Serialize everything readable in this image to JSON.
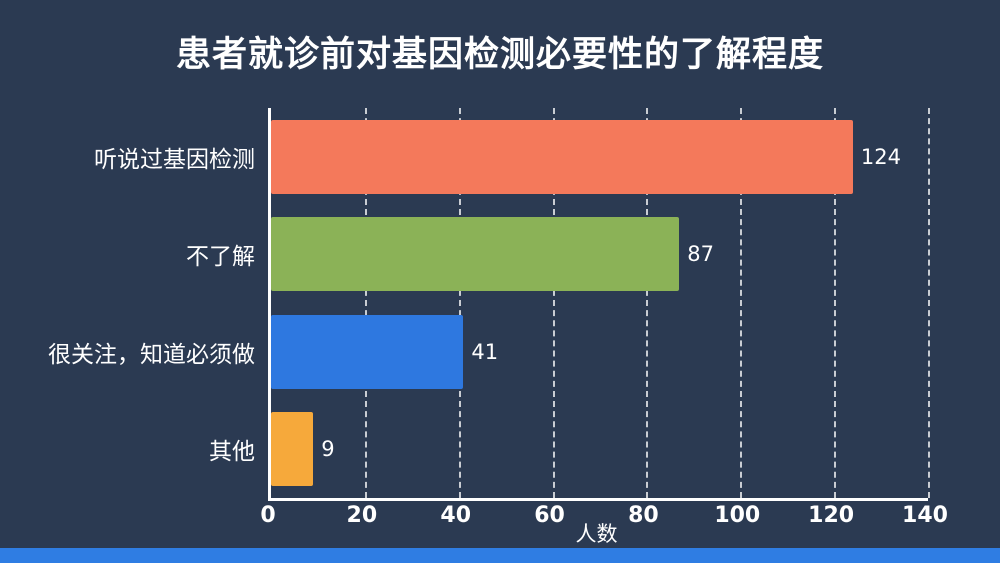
{
  "slide": {
    "background": "#2b3a52",
    "accent_bar_color": "#2f7de3",
    "axis_color": "#ffffff"
  },
  "chart_data": {
    "type": "bar",
    "orientation": "horizontal",
    "title": "患者就诊前对基因检测必要性的了解程度",
    "categories": [
      "听说过基因检测",
      "不了解",
      "很关注，知道必须做",
      "其他"
    ],
    "values": [
      124,
      87,
      41,
      9
    ],
    "bar_colors": [
      "#f4795b",
      "#8bb257",
      "#2e78e0",
      "#f6a93b"
    ],
    "xlabel": "人数",
    "xlim": [
      0,
      140
    ],
    "xticks": [
      0,
      20,
      40,
      60,
      80,
      100,
      120,
      140
    ],
    "grid": "dashed-vertical",
    "legend": "none"
  }
}
